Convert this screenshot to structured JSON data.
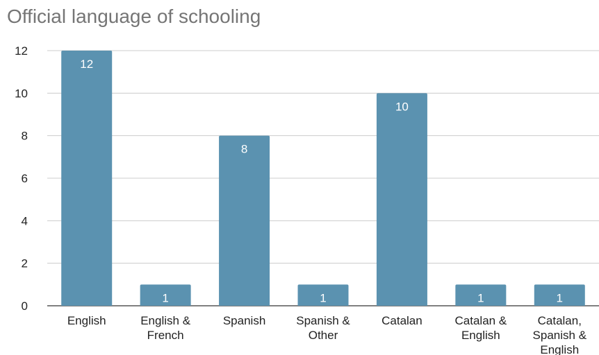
{
  "chart_data": {
    "type": "bar",
    "title": "Official language of schooling",
    "xlabel": "",
    "ylabel": "",
    "categories": [
      [
        "English"
      ],
      [
        "English &",
        "French"
      ],
      [
        "Spanish"
      ],
      [
        "Spanish &",
        "Other"
      ],
      [
        "Catalan"
      ],
      [
        "Catalan &",
        "English"
      ],
      [
        "Catalan,",
        "Spanish &",
        "English"
      ]
    ],
    "values": [
      12,
      1,
      8,
      1,
      10,
      1,
      1
    ],
    "data_labels": [
      "12",
      "1",
      "8",
      "1",
      "10",
      "1",
      "1"
    ],
    "ylim": [
      0,
      12
    ],
    "yticks": [
      0,
      2,
      4,
      6,
      8,
      10,
      12
    ],
    "grid": true,
    "bar_color": "#5b92b0",
    "legend": "none"
  }
}
